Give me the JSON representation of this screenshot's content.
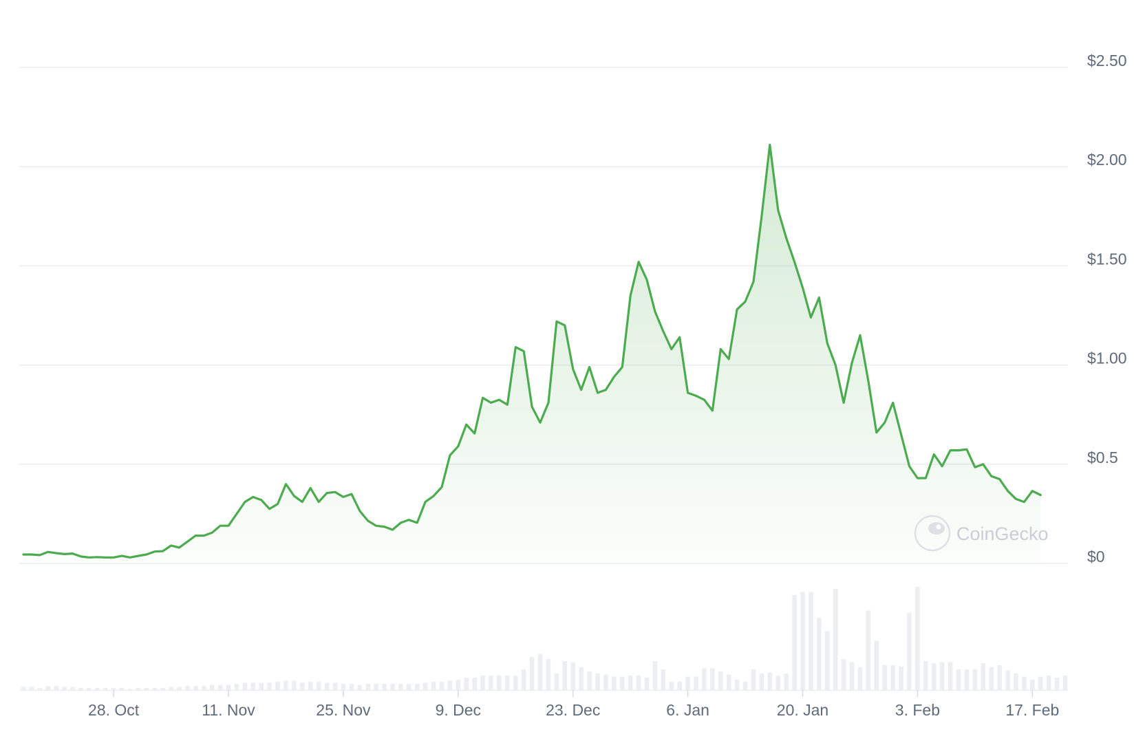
{
  "chart_data": {
    "type": "area",
    "colors": {
      "line": "#4cab4e",
      "area_top": "#4cab4e",
      "volume": "#eceef2",
      "grid": "#ebedf0",
      "tick_text": "#5f6b7a",
      "watermark": "#c9ced6"
    },
    "y_axis": {
      "position": "right",
      "ylim": [
        0,
        2.5
      ],
      "ticks": [
        {
          "value": 0,
          "label": "$0"
        },
        {
          "value": 0.5,
          "label": "$0.5"
        },
        {
          "value": 1.0,
          "label": "$1.00"
        },
        {
          "value": 1.5,
          "label": "$1.50"
        },
        {
          "value": 2.0,
          "label": "$2.00"
        },
        {
          "value": 2.5,
          "label": "$2.50"
        }
      ]
    },
    "x_axis": {
      "range": [
        "2024-10-17",
        "2025-02-21"
      ],
      "ticks": [
        {
          "date": "2024-10-28",
          "label": "28. Oct"
        },
        {
          "date": "2024-11-11",
          "label": "11. Nov"
        },
        {
          "date": "2024-11-25",
          "label": "25. Nov"
        },
        {
          "date": "2024-12-09",
          "label": "9. Dec"
        },
        {
          "date": "2024-12-23",
          "label": "23. Dec"
        },
        {
          "date": "2025-01-06",
          "label": "6. Jan"
        },
        {
          "date": "2025-01-20",
          "label": "20. Jan"
        },
        {
          "date": "2025-02-03",
          "label": "3. Feb"
        },
        {
          "date": "2025-02-17",
          "label": "17. Feb"
        }
      ]
    },
    "grid": true,
    "watermark": "CoinGecko",
    "price_series": [
      [
        "2024-10-17",
        0.045
      ],
      [
        "2024-10-18",
        0.045
      ],
      [
        "2024-10-19",
        0.042
      ],
      [
        "2024-10-20",
        0.058
      ],
      [
        "2024-10-21",
        0.052
      ],
      [
        "2024-10-22",
        0.047
      ],
      [
        "2024-10-23",
        0.05
      ],
      [
        "2024-10-24",
        0.035
      ],
      [
        "2024-10-25",
        0.03
      ],
      [
        "2024-10-26",
        0.032
      ],
      [
        "2024-10-27",
        0.03
      ],
      [
        "2024-10-28",
        0.03
      ],
      [
        "2024-10-29",
        0.038
      ],
      [
        "2024-10-30",
        0.03
      ],
      [
        "2024-10-31",
        0.038
      ],
      [
        "2024-11-01",
        0.045
      ],
      [
        "2024-11-02",
        0.06
      ],
      [
        "2024-11-03",
        0.062
      ],
      [
        "2024-11-04",
        0.09
      ],
      [
        "2024-11-05",
        0.08
      ],
      [
        "2024-11-06",
        0.11
      ],
      [
        "2024-11-07",
        0.14
      ],
      [
        "2024-11-08",
        0.14
      ],
      [
        "2024-11-09",
        0.155
      ],
      [
        "2024-11-10",
        0.19
      ],
      [
        "2024-11-11",
        0.19
      ],
      [
        "2024-11-12",
        0.25
      ],
      [
        "2024-11-13",
        0.31
      ],
      [
        "2024-11-14",
        0.335
      ],
      [
        "2024-11-15",
        0.32
      ],
      [
        "2024-11-16",
        0.275
      ],
      [
        "2024-11-17",
        0.3
      ],
      [
        "2024-11-18",
        0.4
      ],
      [
        "2024-11-19",
        0.34
      ],
      [
        "2024-11-20",
        0.31
      ],
      [
        "2024-11-21",
        0.38
      ],
      [
        "2024-11-22",
        0.31
      ],
      [
        "2024-11-23",
        0.355
      ],
      [
        "2024-11-24",
        0.36
      ],
      [
        "2024-11-25",
        0.335
      ],
      [
        "2024-11-26",
        0.35
      ],
      [
        "2024-11-27",
        0.265
      ],
      [
        "2024-11-28",
        0.215
      ],
      [
        "2024-11-29",
        0.19
      ],
      [
        "2024-11-30",
        0.185
      ],
      [
        "2024-12-01",
        0.17
      ],
      [
        "2024-12-02",
        0.205
      ],
      [
        "2024-12-03",
        0.22
      ],
      [
        "2024-12-04",
        0.205
      ],
      [
        "2024-12-05",
        0.31
      ],
      [
        "2024-12-06",
        0.34
      ],
      [
        "2024-12-07",
        0.385
      ],
      [
        "2024-12-08",
        0.545
      ],
      [
        "2024-12-09",
        0.59
      ],
      [
        "2024-12-10",
        0.7
      ],
      [
        "2024-12-11",
        0.655
      ],
      [
        "2024-12-12",
        0.835
      ],
      [
        "2024-12-13",
        0.81
      ],
      [
        "2024-12-14",
        0.825
      ],
      [
        "2024-12-15",
        0.8
      ],
      [
        "2024-12-16",
        1.09
      ],
      [
        "2024-12-17",
        1.07
      ],
      [
        "2024-12-18",
        0.79
      ],
      [
        "2024-12-19",
        0.71
      ],
      [
        "2024-12-20",
        0.81
      ],
      [
        "2024-12-21",
        1.22
      ],
      [
        "2024-12-22",
        1.2
      ],
      [
        "2024-12-23",
        0.98
      ],
      [
        "2024-12-24",
        0.875
      ],
      [
        "2024-12-25",
        0.99
      ],
      [
        "2024-12-26",
        0.86
      ],
      [
        "2024-12-27",
        0.875
      ],
      [
        "2024-12-28",
        0.94
      ],
      [
        "2024-12-29",
        0.99
      ],
      [
        "2024-12-30",
        1.35
      ],
      [
        "2024-12-31",
        1.52
      ],
      [
        "2025-01-01",
        1.43
      ],
      [
        "2025-01-02",
        1.27
      ],
      [
        "2025-01-03",
        1.17
      ],
      [
        "2025-01-04",
        1.08
      ],
      [
        "2025-01-05",
        1.14
      ],
      [
        "2025-01-06",
        0.86
      ],
      [
        "2025-01-07",
        0.845
      ],
      [
        "2025-01-08",
        0.825
      ],
      [
        "2025-01-09",
        0.77
      ],
      [
        "2025-01-10",
        1.08
      ],
      [
        "2025-01-11",
        1.03
      ],
      [
        "2025-01-12",
        1.28
      ],
      [
        "2025-01-13",
        1.32
      ],
      [
        "2025-01-14",
        1.42
      ],
      [
        "2025-01-15",
        1.75
      ],
      [
        "2025-01-16",
        2.11
      ],
      [
        "2025-01-17",
        1.78
      ],
      [
        "2025-01-18",
        1.64
      ],
      [
        "2025-01-19",
        1.52
      ],
      [
        "2025-01-20",
        1.39
      ],
      [
        "2025-01-21",
        1.24
      ],
      [
        "2025-01-22",
        1.34
      ],
      [
        "2025-01-23",
        1.11
      ],
      [
        "2025-01-24",
        1.0
      ],
      [
        "2025-01-25",
        0.81
      ],
      [
        "2025-01-26",
        1.01
      ],
      [
        "2025-01-27",
        1.15
      ],
      [
        "2025-01-28",
        0.92
      ],
      [
        "2025-01-29",
        0.66
      ],
      [
        "2025-01-30",
        0.71
      ],
      [
        "2025-01-31",
        0.81
      ],
      [
        "2025-02-01",
        0.65
      ],
      [
        "2025-02-02",
        0.49
      ],
      [
        "2025-02-03",
        0.43
      ],
      [
        "2025-02-04",
        0.43
      ],
      [
        "2025-02-05",
        0.55
      ],
      [
        "2025-02-06",
        0.49
      ],
      [
        "2025-02-07",
        0.57
      ],
      [
        "2025-02-08",
        0.57
      ],
      [
        "2025-02-09",
        0.575
      ],
      [
        "2025-02-10",
        0.485
      ],
      [
        "2025-02-11",
        0.5
      ],
      [
        "2025-02-12",
        0.44
      ],
      [
        "2025-02-13",
        0.425
      ],
      [
        "2025-02-14",
        0.365
      ],
      [
        "2025-02-15",
        0.325
      ],
      [
        "2025-02-16",
        0.31
      ],
      [
        "2025-02-17",
        0.365
      ],
      [
        "2025-02-18",
        0.345
      ]
    ],
    "volume_series": [
      3,
      3,
      2,
      4,
      4,
      3,
      3,
      2,
      2,
      2,
      2,
      2,
      2,
      1,
      2,
      2,
      2,
      2,
      3,
      3,
      4,
      4,
      4,
      5,
      5,
      5,
      6,
      7,
      7,
      7,
      7,
      8,
      9,
      9,
      7,
      8,
      8,
      7,
      7,
      6,
      6,
      5,
      6,
      6,
      6,
      6,
      6,
      6,
      6,
      7,
      8,
      8,
      9,
      10,
      12,
      12,
      14,
      14,
      14,
      14,
      14,
      20,
      32,
      35,
      30,
      16,
      28,
      27,
      22,
      18,
      16,
      15,
      13,
      13,
      14,
      14,
      12,
      28,
      20,
      8,
      8,
      13,
      13,
      21,
      21,
      18,
      15,
      10,
      8,
      20,
      16,
      17,
      14,
      16,
      92,
      95,
      95,
      70,
      57,
      98,
      30,
      27,
      22,
      77,
      48,
      24,
      24,
      23,
      75,
      100,
      28,
      26,
      27,
      27,
      20,
      20,
      20,
      26,
      22,
      24,
      19,
      16,
      13,
      10,
      13,
      14,
      12,
      14
    ]
  }
}
